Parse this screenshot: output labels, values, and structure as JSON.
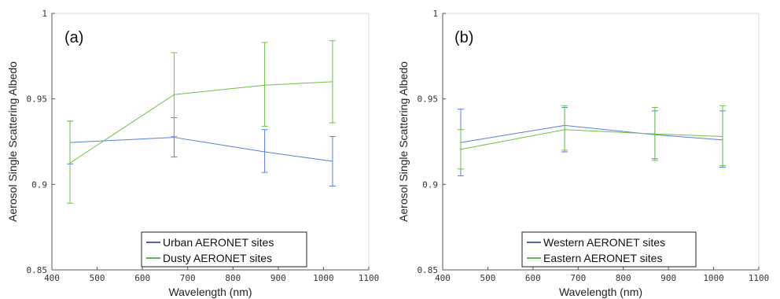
{
  "chart_data": [
    {
      "type": "line",
      "panel_label": "(a)",
      "xlabel": "Wavelength (nm)",
      "ylabel": "Aerosol Single Scattering Albedo",
      "xlim": [
        400,
        1100
      ],
      "ylim": [
        0.85,
        1
      ],
      "x_ticks": [
        "400",
        "500",
        "600",
        "700",
        "800",
        "900",
        "1000",
        "1100"
      ],
      "y_ticks": [
        "0.85",
        "0.9",
        "0.95",
        "1"
      ],
      "grid": false,
      "legend_position": "bottom-center",
      "series": [
        {
          "name": "Urban AERONET sites",
          "color": "#5b7fd6",
          "legend_color": "#1f2e8f",
          "x": [
            440,
            670,
            870,
            1020
          ],
          "y": [
            0.9245,
            0.9275,
            0.919,
            0.9135
          ],
          "err_low": [
            0.912,
            0.916,
            0.907,
            0.899
          ],
          "err_high": [
            0.937,
            0.939,
            0.932,
            0.928
          ]
        },
        {
          "name": "Dusty AERONET sites",
          "color": "#6dc24a",
          "legend_color": "#2c9e1f",
          "x": [
            440,
            670,
            870,
            1020
          ],
          "y": [
            0.9125,
            0.9525,
            0.958,
            0.96
          ],
          "err_low": [
            0.889,
            0.928,
            0.934,
            0.936
          ],
          "err_high": [
            0.937,
            0.977,
            0.983,
            0.984
          ]
        }
      ]
    },
    {
      "type": "line",
      "panel_label": "(b)",
      "xlabel": "Wavelength (nm)",
      "ylabel": "Aerosol Single Scattering Albedo",
      "xlim": [
        400,
        1100
      ],
      "ylim": [
        0.85,
        1
      ],
      "x_ticks": [
        "400",
        "500",
        "600",
        "700",
        "800",
        "900",
        "1000",
        "1100"
      ],
      "y_ticks": [
        "0.85",
        "0.9",
        "0.95",
        "1"
      ],
      "grid": false,
      "legend_position": "bottom-center",
      "series": [
        {
          "name": "Western AERONET sites",
          "color": "#5b7fd6",
          "legend_color": "#1f2e8f",
          "x": [
            440,
            670,
            870,
            1020
          ],
          "y": [
            0.9245,
            0.9345,
            0.929,
            0.926
          ],
          "err_low": [
            0.905,
            0.919,
            0.915,
            0.91
          ],
          "err_high": [
            0.944,
            0.945,
            0.943,
            0.943
          ]
        },
        {
          "name": "Eastern AERONET sites",
          "color": "#6dc24a",
          "legend_color": "#2c9e1f",
          "x": [
            440,
            670,
            870,
            1020
          ],
          "y": [
            0.9205,
            0.932,
            0.9295,
            0.928
          ],
          "err_low": [
            0.909,
            0.92,
            0.914,
            0.911
          ],
          "err_high": [
            0.932,
            0.946,
            0.945,
            0.946
          ]
        }
      ]
    }
  ]
}
